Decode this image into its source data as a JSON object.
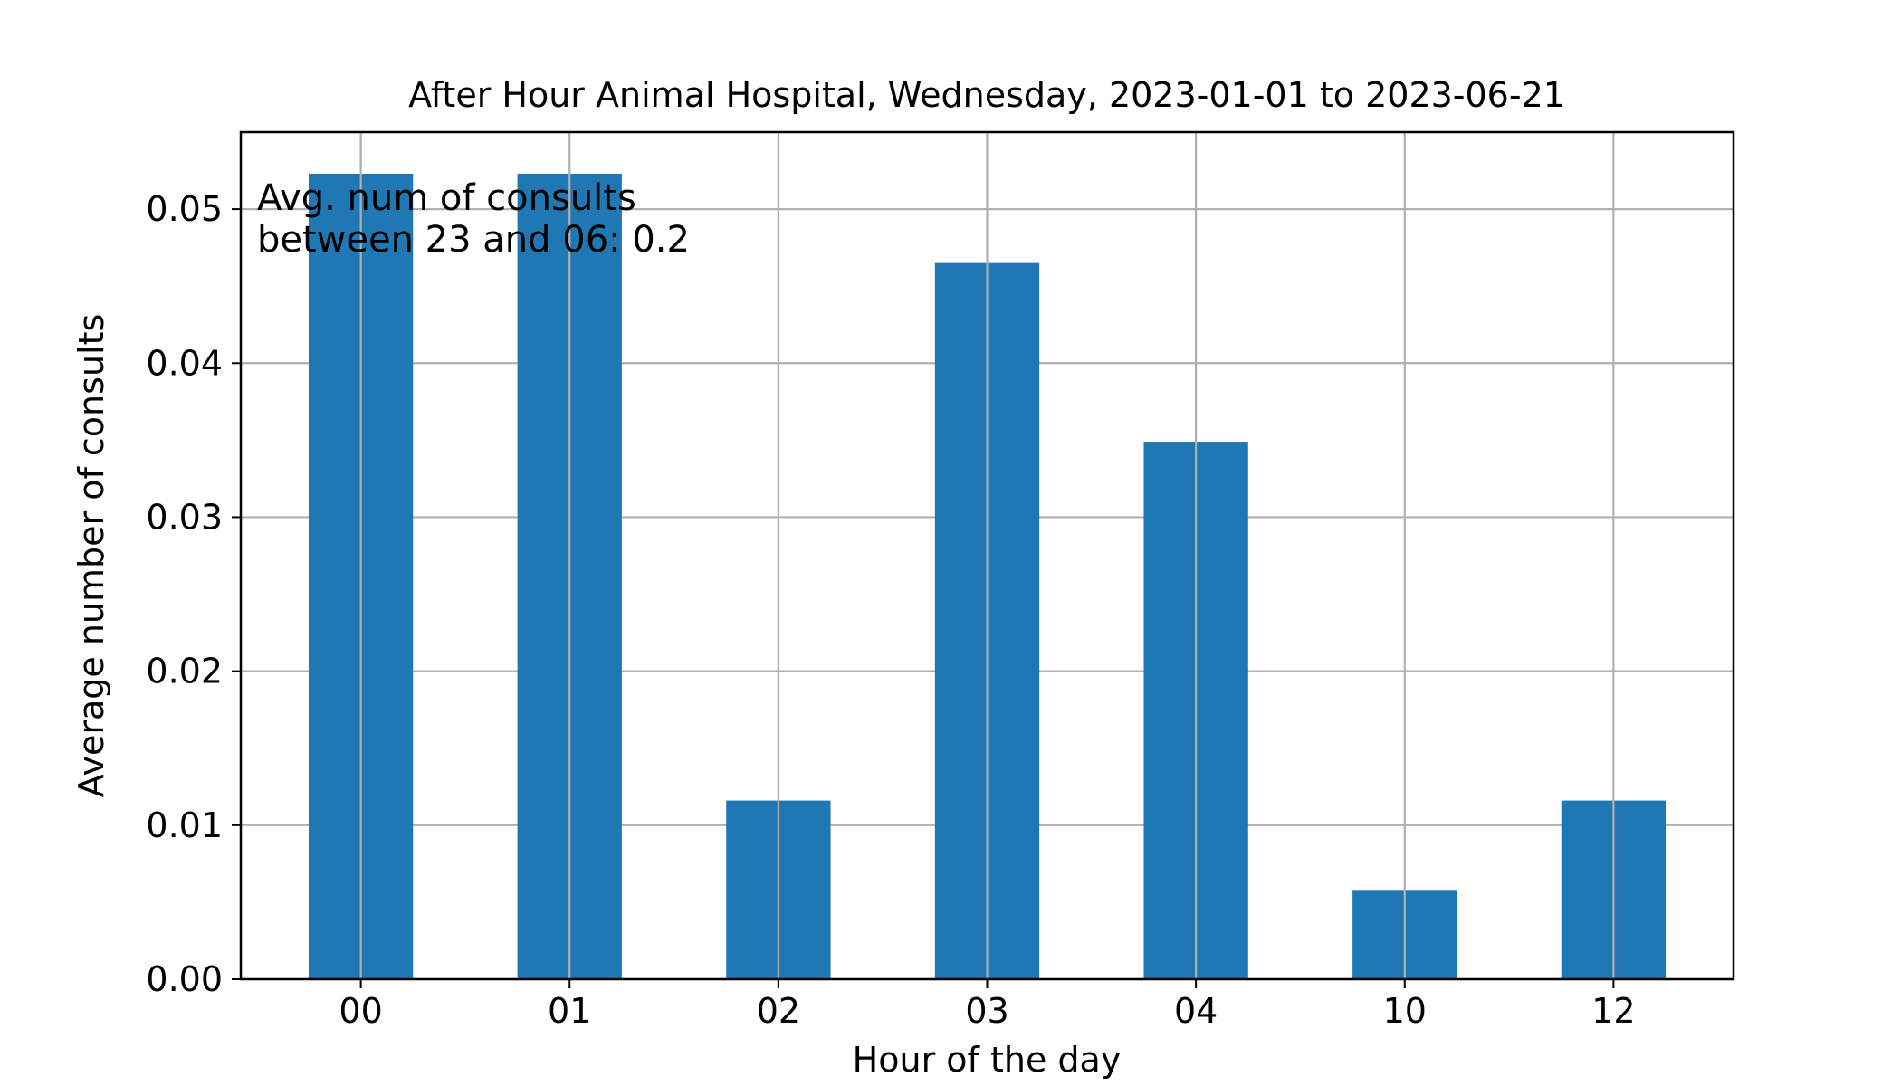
{
  "chart_data": {
    "type": "bar",
    "title": "After Hour Animal Hospital, Wednesday, 2023-01-01 to 2023-06-21",
    "xlabel": "Hour of the day",
    "ylabel": "Average number of consults",
    "categories": [
      "00",
      "01",
      "02",
      "03",
      "04",
      "10",
      "12"
    ],
    "values": [
      0.0523,
      0.0523,
      0.0116,
      0.0465,
      0.0349,
      0.0058,
      0.0116
    ],
    "ylim": [
      0,
      0.055
    ],
    "yticks": [
      0.0,
      0.01,
      0.02,
      0.03,
      0.04,
      0.05
    ],
    "ytick_labels": [
      "0.00",
      "0.01",
      "0.02",
      "0.03",
      "0.04",
      "0.05"
    ],
    "grid": true,
    "bar_color": "#1f77b4",
    "grid_color": "#b0b0b0",
    "annotation": [
      "Avg. num of consults",
      "between 23 and 06: 0.2"
    ]
  }
}
